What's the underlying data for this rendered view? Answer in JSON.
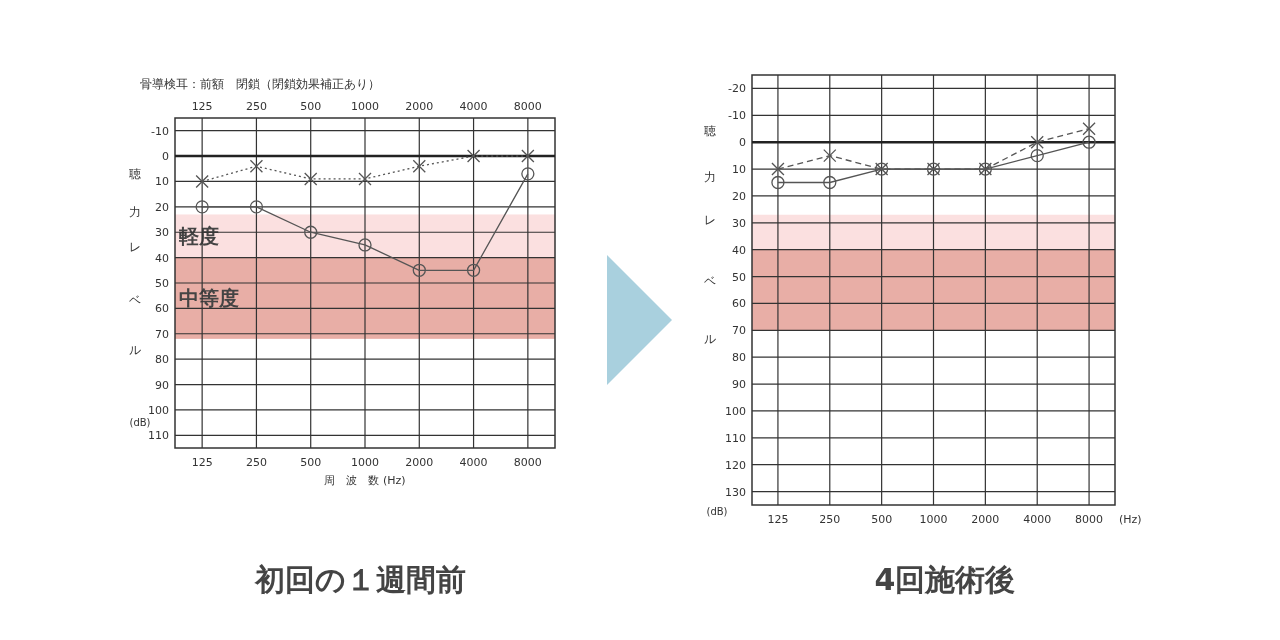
{
  "chart_data": [
    {
      "type": "line",
      "title": "初回の１週間前",
      "subtitle": "骨導検耳：前額　閉鎖（閉鎖効果補正あり）",
      "xlabel": "周　波　数 (Hz)",
      "ylabel": "聴力レベル",
      "annotations": [
        "(dB)"
      ],
      "categories": [
        "125",
        "250",
        "500",
        "1000",
        "2000",
        "4000",
        "8000"
      ],
      "x2lim": [
        88.4,
        11314
      ],
      "x2ticks": [
        125,
        250,
        500,
        1000,
        2000,
        4000,
        8000
      ],
      "log": "x2",
      "series": [
        {
          "color": "#555555",
          "values": [
            20,
            20,
            30,
            35,
            45,
            45,
            7
          ],
          "marker": "circle",
          "line_style": "solid"
        },
        {
          "color": "#555555",
          "values": [
            10,
            4,
            9,
            9,
            4,
            0,
            0
          ],
          "marker": "cross",
          "line_style": "dotted"
        }
      ],
      "ylim": [
        115,
        -15
      ],
      "yticks": [
        -10,
        0,
        10,
        20,
        30,
        40,
        50,
        60,
        70,
        80,
        90,
        100,
        110
      ],
      "bands": [
        {
          "axis": "y",
          "from": 23,
          "to": 40,
          "label": "軽度",
          "color": "#fadadb"
        },
        {
          "axis": "y",
          "from": 40,
          "to": 72,
          "label": "中等度",
          "color": "#e4a096"
        }
      ],
      "ref_lines": [
        {
          "axis": "y",
          "value": 0,
          "color": "#222222"
        }
      ],
      "grid": true
    },
    {
      "type": "line",
      "title": "4回施術後",
      "xlabel": "(Hz)",
      "ylabel": "聴力レベル",
      "annotations": [
        "(dB)"
      ],
      "categories": [
        "125",
        "250",
        "500",
        "1000",
        "2000",
        "4000",
        "8000"
      ],
      "series": [
        {
          "color": "#555555",
          "values": [
            15,
            15,
            10,
            10,
            10,
            5,
            0
          ],
          "marker": "circle",
          "line_style": "solid"
        },
        {
          "color": "#555555",
          "values": [
            10,
            5,
            10,
            10,
            10,
            0,
            -5
          ],
          "marker": "cross",
          "line_style": "dashed"
        }
      ],
      "ylim": [
        135,
        -25
      ],
      "yticks": [
        -20,
        -10,
        0,
        10,
        20,
        30,
        40,
        50,
        60,
        70,
        80,
        90,
        100,
        110,
        120,
        130
      ],
      "bands": [
        {
          "axis": "y",
          "from": 27,
          "to": 40,
          "color": "#fadadb"
        },
        {
          "axis": "y",
          "from": 40,
          "to": 70,
          "color": "#e4a096"
        }
      ],
      "ref_lines": [
        {
          "axis": "y",
          "value": 0,
          "color": "#222222"
        }
      ],
      "grid": true
    }
  ]
}
